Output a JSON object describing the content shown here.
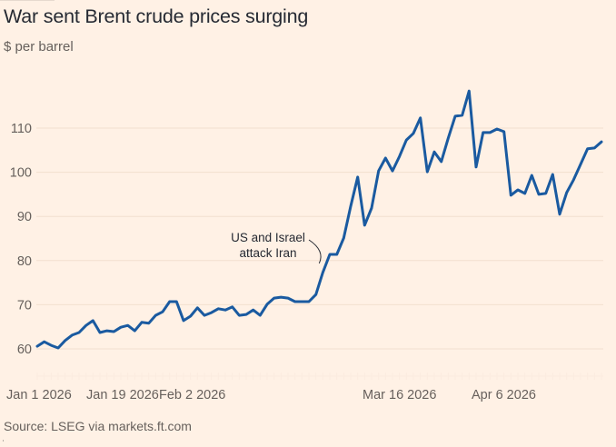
{
  "chart_data": {
    "type": "line",
    "title": "War sent Brent crude prices surging",
    "subtitle": "$ per barrel",
    "source": "Source: LSEG via markets.ft.com",
    "xlabel": "",
    "ylabel": "$ per barrel",
    "ylim": [
      58,
      120
    ],
    "yticks": [
      60,
      70,
      80,
      90,
      100,
      110
    ],
    "ytick_labels": [
      "60",
      "70",
      "80",
      "90",
      "100",
      "110"
    ],
    "xtick_labels": [
      {
        "label": "Jan 1 2026",
        "index": 0
      },
      {
        "label": "Jan 19 2026",
        "index": 12
      },
      {
        "label": "Feb 2 2026",
        "index": 22
      },
      {
        "label": "Mar 16 2026",
        "index": 52
      },
      {
        "label": "Apr 6 2026",
        "index": 67
      }
    ],
    "grid": true,
    "line_color": "#1a5aa0",
    "annotation": {
      "lines": [
        "US and Israel",
        "attack Iran"
      ],
      "index": 41
    },
    "series": [
      {
        "name": "Brent crude",
        "values": [
          60.6,
          61.6,
          60.8,
          60.2,
          61.9,
          63.1,
          63.7,
          65.3,
          66.4,
          63.7,
          64.1,
          63.9,
          64.9,
          65.3,
          64.1,
          66.0,
          65.8,
          67.6,
          68.4,
          70.7,
          70.7,
          66.4,
          67.4,
          69.3,
          67.6,
          68.2,
          69.1,
          68.8,
          69.5,
          67.6,
          67.8,
          68.8,
          67.6,
          70.1,
          71.5,
          71.7,
          71.5,
          70.7,
          70.7,
          70.7,
          72.3,
          77.3,
          81.4,
          81.4,
          85.1,
          92.3,
          98.9,
          88.0,
          91.9,
          100.3,
          103.2,
          100.3,
          103.6,
          107.3,
          108.8,
          112.3,
          100.1,
          104.6,
          102.4,
          107.7,
          112.7,
          112.9,
          118.4,
          101.2,
          109.0,
          109.0,
          109.8,
          109.2,
          94.8,
          96.0,
          95.2,
          99.3,
          95.0,
          95.2,
          99.5,
          90.5,
          95.4,
          98.3,
          101.8,
          105.3,
          105.5,
          106.9
        ]
      }
    ]
  }
}
